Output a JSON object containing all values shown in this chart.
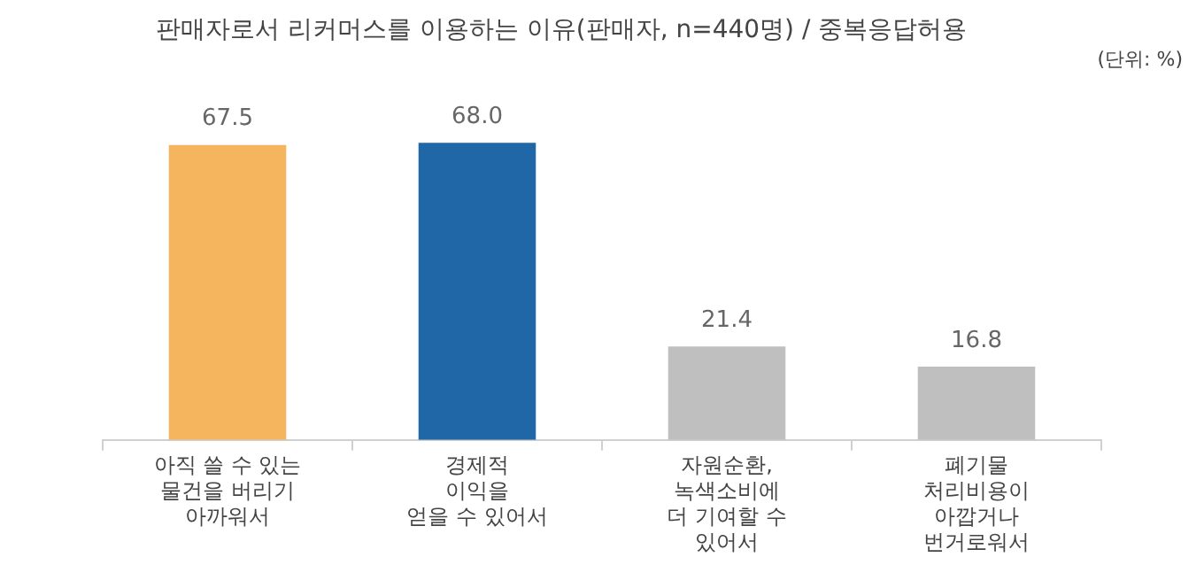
{
  "chart_data": {
    "type": "bar",
    "title": "판매자로서 리커머스를 이용하는 이유(판매자, n=440명) / 중복응답허용",
    "subtitle": "(단위: %)",
    "categories": [
      "아직 쓸 수 있는\n물건을 버리기\n아까워서",
      "경제적\n이익을\n얻을 수 있어서",
      "자원순환,\n녹색소비에\n더 기여할 수\n있어서",
      "폐기물\n처리비용이\n아깝거나\n번거로워서"
    ],
    "values": [
      67.5,
      68.0,
      21.4,
      16.8
    ],
    "value_labels": [
      "67.5",
      "68.0",
      "21.4",
      "16.8"
    ],
    "colors": [
      "#f4b55e",
      "#2067a8",
      "#bfbfbf",
      "#bfbfbf"
    ],
    "grid": false,
    "legend": false
  }
}
